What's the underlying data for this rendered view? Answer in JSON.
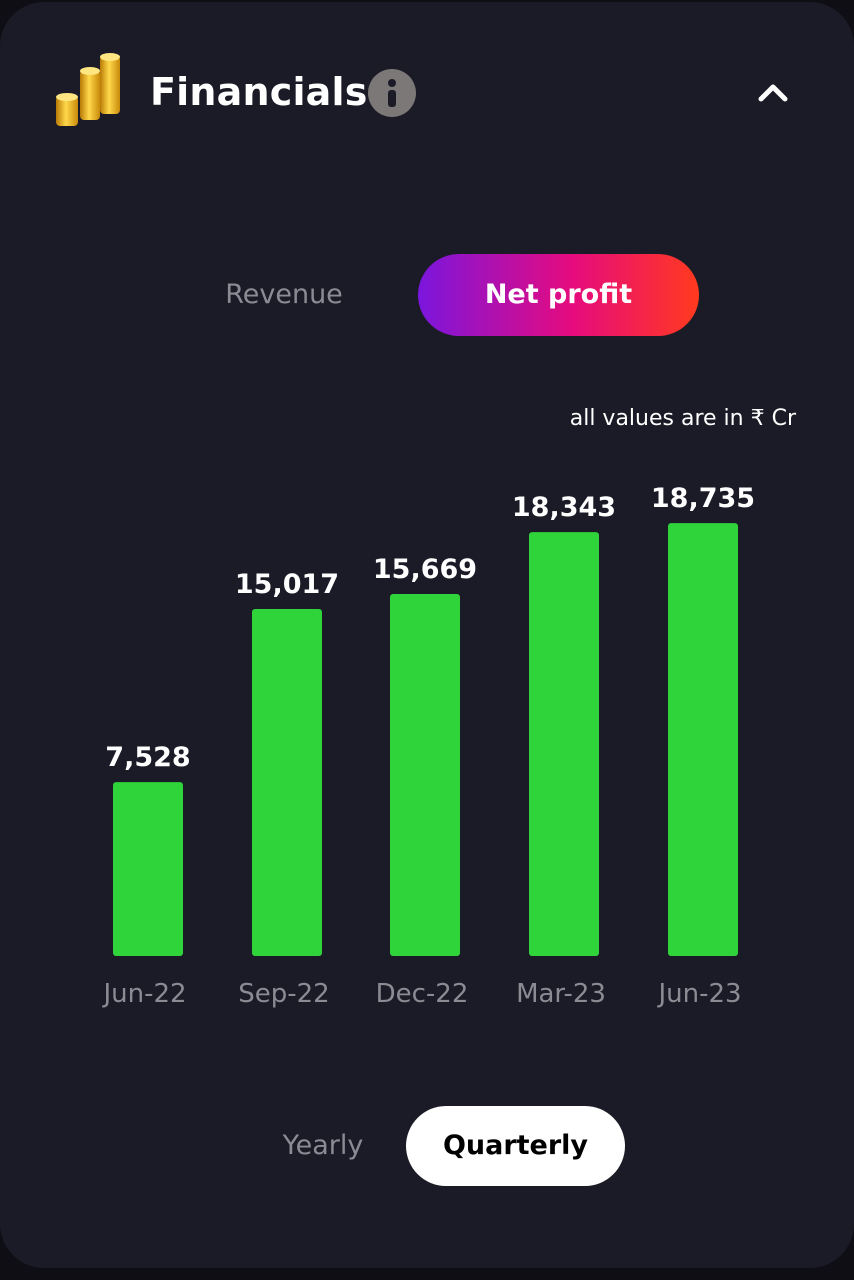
{
  "header": {
    "title": "Financials",
    "icon": "coins-stack-icon",
    "info_icon": "info-icon",
    "collapse_icon": "chevron-up-icon"
  },
  "metric_toggle": {
    "options": [
      "Revenue",
      "Net profit"
    ],
    "selected": "Net profit"
  },
  "unit_note": "all values are in ₹ Cr",
  "period_toggle": {
    "options": [
      "Yearly",
      "Quarterly"
    ],
    "selected": "Quarterly"
  },
  "colors": {
    "bar": "#2fd33a",
    "background": "#1a1b26",
    "accent_gradient_start": "#7b16dd",
    "accent_gradient_end": "#ff3a1e"
  },
  "chart_data": {
    "type": "bar",
    "categories": [
      "Jun-22",
      "Sep-22",
      "Dec-22",
      "Mar-23",
      "Jun-23"
    ],
    "values": [
      7528,
      15017,
      15669,
      18343,
      18735
    ],
    "value_labels": [
      "7,528",
      "15,017",
      "15,669",
      "18,343",
      "18,735"
    ],
    "title": "",
    "xlabel": "",
    "ylabel": "",
    "grid": false,
    "ylim": [
      0,
      19000
    ]
  }
}
